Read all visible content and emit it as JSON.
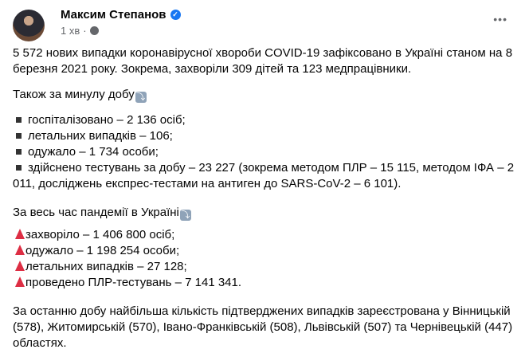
{
  "author": {
    "name": "Максим Степанов",
    "time": "1 хв",
    "verified": true,
    "privacy_icon": "globe-icon"
  },
  "menu_icon": "more-icon",
  "post": {
    "intro": "5 572 нових випадки коронавірусної хвороби COVID-19 зафіксовано в Україні станом на 8 березня 2021 року. Зокрема, захворіли 309 дітей та 123 медпрацівники.",
    "daily_heading": "Також за минулу добу",
    "daily_items": [
      "госпіталізовано – 2 136 осіб;",
      "летальних випадків – 106;",
      "одужало – 1 734 особи;",
      "здійснено тестувань за добу – 23 227 (зокрема методом ПЛР – 15 115, методом ІФА – 2 011, досліджень експрес-тестами на антиген до SARS-CoV-2 – 6 101)."
    ],
    "total_heading": "За весь час пандемії в Україні",
    "total_items": [
      "захворіло – 1 406 800 осіб;",
      "одужало – 1 198 254 особи;",
      "летальних випадків – 27 128;",
      "проведено ПЛР-тестувань – 7 141 341."
    ],
    "outro": "За останню добу найбільша кількість підтверджених випадків зареєстрована у Вінницькій (578), Житомирській (570), Івано-Франківській (508), Львівській (507) та Чернівецькій (447) областях."
  },
  "colors": {
    "triangle": "#dd2e44",
    "verified": "#1877f2"
  }
}
